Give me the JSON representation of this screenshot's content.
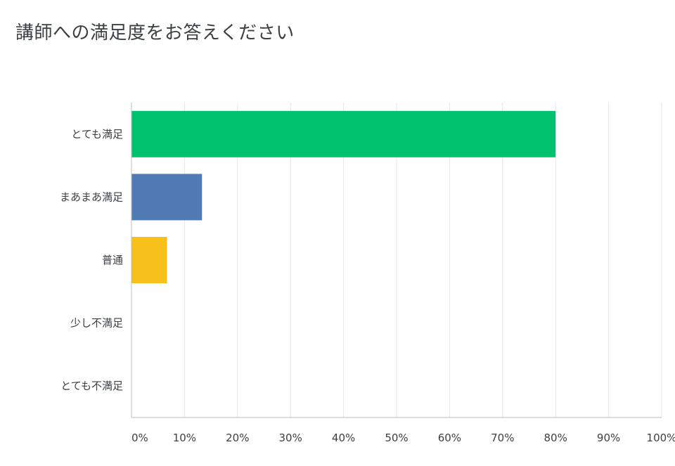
{
  "title": "講師への満足度をお答えください",
  "chart_data": {
    "type": "bar",
    "orientation": "horizontal",
    "categories": [
      "とても満足",
      "まあまあ満足",
      "普通",
      "少し不満足",
      "とても不満足"
    ],
    "values": [
      80,
      13.3,
      6.7,
      0,
      0
    ],
    "colors": [
      "#00c16e",
      "#4f7ab3",
      "#f8c01b",
      "#e35e4f",
      "#e35e4f"
    ],
    "xticks": [
      "0%",
      "10%",
      "20%",
      "30%",
      "40%",
      "50%",
      "60%",
      "70%",
      "80%",
      "90%",
      "100%"
    ],
    "xlim": [
      0,
      100
    ],
    "grid": true,
    "legend": "none"
  }
}
